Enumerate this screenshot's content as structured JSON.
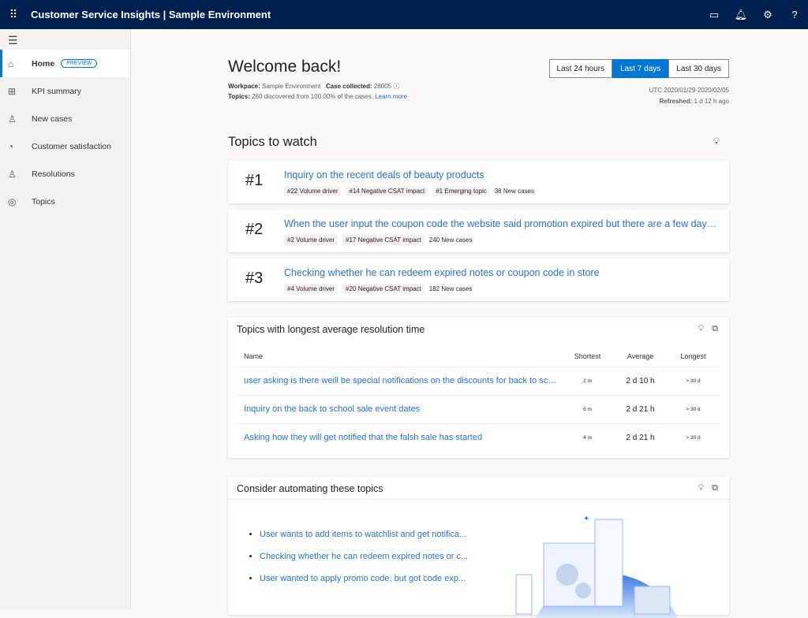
{
  "app": {
    "title": "Customer Service Insights | Sample Environment",
    "icons": [
      "waffle-icon",
      "monitor-icon",
      "bell-icon",
      "gear-icon",
      "help-icon"
    ],
    "help_glyph": "?"
  },
  "sidebar": {
    "items": [
      {
        "label": "Home",
        "badge": "PREVIEW",
        "icon": "home-icon",
        "active": true
      },
      {
        "label": "KPI summary",
        "icon": "dashboard-icon"
      },
      {
        "label": "New cases",
        "icon": "person-icon"
      },
      {
        "label": "Customer satisfaction",
        "icon": "gauge-icon"
      },
      {
        "label": "Resolutions",
        "icon": "person-check-icon"
      },
      {
        "label": "Topics",
        "icon": "radar-icon"
      }
    ]
  },
  "header": {
    "title": "Welcome back!",
    "workspace_label": "Workpace:",
    "workspace": "Sample Environment",
    "cases_label": "Case collected:",
    "cases": "28005",
    "topics_label": "Topics:",
    "topics_text": "260 discovered from 100.00% of the cases.",
    "learn_more": "Learn more",
    "ranges": [
      "Last 24 hours",
      "Last 7 days",
      "Last 30 days"
    ],
    "selected_range": "Last 7 days",
    "date_range": "UTC 2020/01/29-2020/02/05",
    "refreshed_label": "Refreshed:",
    "refreshed": "1 d 12 h ago"
  },
  "topics_to_watch": {
    "title": "Topics to watch",
    "items": [
      {
        "rank": "#1",
        "title": "Inquiry on the recent deals of beauty products",
        "tags": [
          "#22 Volume driver",
          "#14 Negative CSAT impact",
          "#1 Emerging topic"
        ],
        "new_cases": "38 New cases"
      },
      {
        "rank": "#2",
        "title": "When the user input the coupon code the website said promotion expired but there are a few days left",
        "tags": [
          "#2 Volume driver",
          "#17 Negative CSAT impact"
        ],
        "new_cases": "240 New cases"
      },
      {
        "rank": "#3",
        "title": "Checking whether he can redeem expired notes or coupon code in store",
        "tags": [
          "#4 Volume driver",
          "#20 Negative CSAT impact"
        ],
        "new_cases": "182 New cases"
      }
    ]
  },
  "resolution": {
    "title": "Topics with longest average resolution time",
    "columns": [
      "Name",
      "Shortest",
      "Average",
      "Longest"
    ],
    "rows": [
      {
        "name": "user asking is there weill be special notifications on the discounts for back to school",
        "shortest": "2 m",
        "average": "2 d 10 h",
        "longest": "> 30 d"
      },
      {
        "name": "Inquiry on the back to school sale event dates",
        "shortest": "6 m",
        "average": "2 d 21 h",
        "longest": "> 30 d"
      },
      {
        "name": "Asking how they will get notified that the falsh sale has started",
        "shortest": "4 m",
        "average": "2 d 21 h",
        "longest": "> 30 d"
      }
    ]
  },
  "automate": {
    "title": "Consider automating these topics",
    "items": [
      "User wants to add items to watchlist and get notifica...",
      "Checking whether he can redeem expired notes or c...",
      "User wanted to apply promo code, but got code exp..."
    ]
  },
  "colors": {
    "topbar": "#002050",
    "accent": "#0078d4",
    "link": "#2b6fd1"
  }
}
